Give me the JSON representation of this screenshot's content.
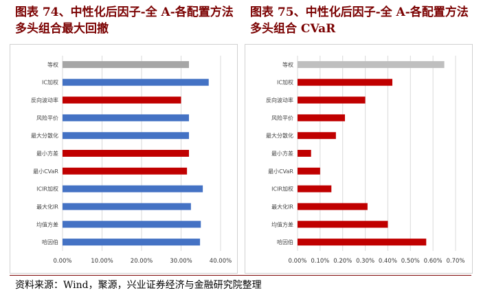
{
  "charts": [
    {
      "title": "图表 74、中性化后因子-全 A-各配置方法多头组合最大回撤",
      "chart_data": {
        "type": "bar",
        "orientation": "horizontal",
        "categories": [
          "等权",
          "IC加权",
          "反向波动率",
          "风险平价",
          "最大分散化",
          "最小方差",
          "最小CVaR",
          "ICIR加权",
          "最大化IR",
          "均值方差",
          "哈因伯"
        ],
        "values": [
          32.0,
          37.0,
          30.0,
          32.0,
          32.0,
          32.0,
          31.5,
          35.5,
          32.5,
          35.0,
          34.8
        ],
        "bar_colors": [
          "#a6a6a6",
          "#4472c4",
          "#c00000",
          "#4472c4",
          "#4472c4",
          "#c00000",
          "#c00000",
          "#4472c4",
          "#4472c4",
          "#4472c4",
          "#4472c4"
        ],
        "xticks": [
          "0.00%",
          "10.00%",
          "20.00%",
          "30.00%",
          "40.00%"
        ],
        "xlim": [
          0,
          40
        ],
        "grid": true
      }
    },
    {
      "title": "图表 75、中性化后因子-全 A-各配置方法多头组合 CVaR",
      "chart_data": {
        "type": "bar",
        "orientation": "horizontal",
        "categories": [
          "等权",
          "IC加权",
          "反向波动率",
          "风险平价",
          "最大分散化",
          "最小方差",
          "最小CVaR",
          "ICIR加权",
          "最大化IR",
          "均值方差",
          "哈因伯"
        ],
        "values": [
          0.65,
          0.42,
          0.3,
          0.21,
          0.17,
          0.06,
          0.1,
          0.15,
          0.31,
          0.4,
          0.57
        ],
        "bar_colors": [
          "#bfbfbf",
          "#c00000",
          "#c00000",
          "#c00000",
          "#c00000",
          "#c00000",
          "#c00000",
          "#c00000",
          "#c00000",
          "#c00000",
          "#c00000"
        ],
        "xticks": [
          "0.00%",
          "0.10%",
          "0.20%",
          "0.30%",
          "0.40%",
          "0.50%",
          "0.60%",
          "0.70%"
        ],
        "xlim": [
          0,
          0.7
        ],
        "grid": true
      }
    }
  ],
  "source": "资料来源：Wind，聚源，兴业证券经济与金融研究院整理"
}
